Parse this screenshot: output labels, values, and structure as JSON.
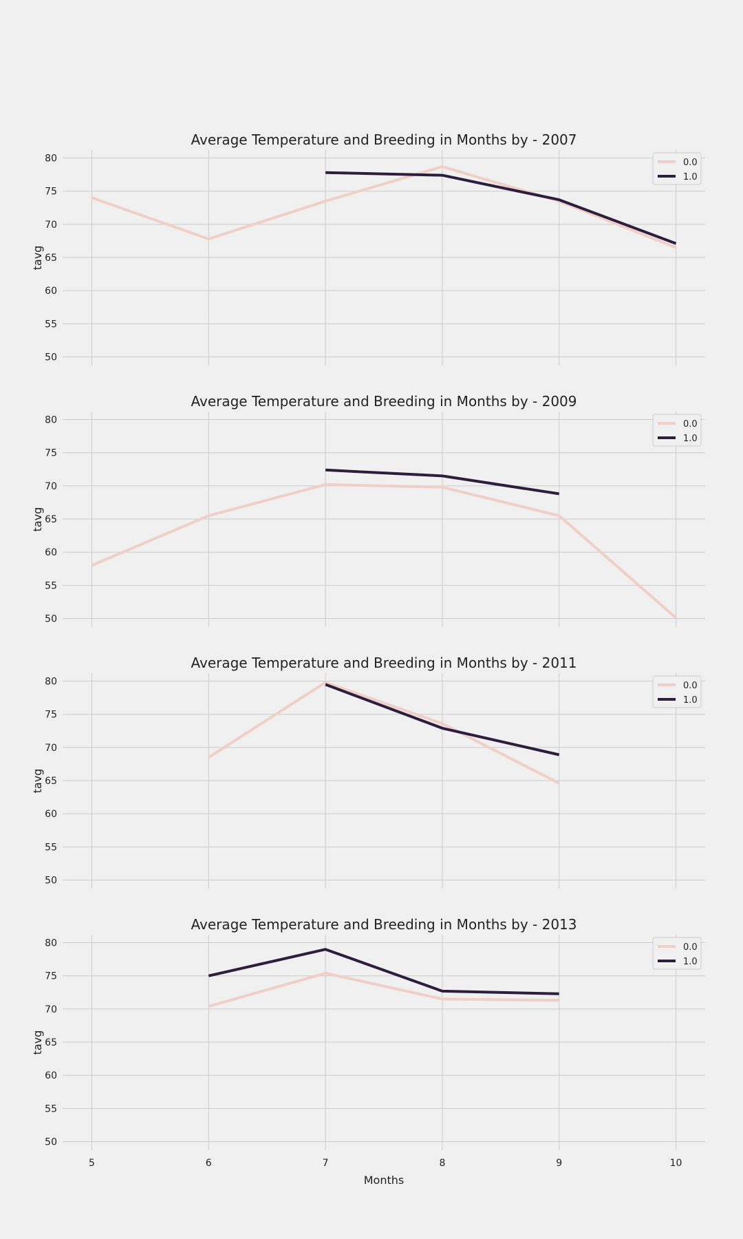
{
  "chart_data": [
    {
      "type": "line",
      "title": "Average Temperature and Breeding in Months by - 2007",
      "xlabel": "",
      "ylabel": "tavg",
      "xlim": [
        4.75,
        10.25
      ],
      "ylim": [
        48.7,
        81.2
      ],
      "x_ticks": [
        5,
        6,
        7,
        8,
        9,
        10
      ],
      "y_ticks": [
        50,
        55,
        60,
        65,
        70,
        75,
        80
      ],
      "show_x_tick_labels": false,
      "grid": true,
      "legend": "top-right",
      "series": [
        {
          "name": "0.0",
          "color": "#f0cfc6",
          "points": [
            [
              5,
              74.0
            ],
            [
              6,
              67.8
            ],
            [
              7,
              73.5
            ],
            [
              8,
              78.7
            ],
            [
              9,
              73.5
            ],
            [
              10,
              66.5
            ]
          ]
        },
        {
          "name": "1.0",
          "color": "#2d1e3e",
          "points": [
            [
              7,
              77.8
            ],
            [
              8,
              77.4
            ],
            [
              9,
              73.7
            ],
            [
              10,
              67.1
            ]
          ]
        }
      ]
    },
    {
      "type": "line",
      "title": "Average Temperature and Breeding in Months by - 2009",
      "xlabel": "",
      "ylabel": "tavg",
      "xlim": [
        4.75,
        10.25
      ],
      "ylim": [
        48.7,
        81.2
      ],
      "x_ticks": [
        5,
        6,
        7,
        8,
        9,
        10
      ],
      "y_ticks": [
        50,
        55,
        60,
        65,
        70,
        75,
        80
      ],
      "show_x_tick_labels": false,
      "grid": true,
      "legend": "top-right",
      "series": [
        {
          "name": "0.0",
          "color": "#f0cfc6",
          "points": [
            [
              5,
              58.0
            ],
            [
              6,
              65.5
            ],
            [
              7,
              70.2
            ],
            [
              8,
              69.8
            ],
            [
              9,
              65.5
            ],
            [
              10,
              50.1
            ]
          ]
        },
        {
          "name": "1.0",
          "color": "#2d1e3e",
          "points": [
            [
              7,
              72.4
            ],
            [
              8,
              71.5
            ],
            [
              9,
              68.8
            ]
          ]
        }
      ]
    },
    {
      "type": "line",
      "title": "Average Temperature and Breeding in Months by - 2011",
      "xlabel": "",
      "ylabel": "tavg",
      "xlim": [
        4.75,
        10.25
      ],
      "ylim": [
        48.7,
        81.2
      ],
      "x_ticks": [
        5,
        6,
        7,
        8,
        9,
        10
      ],
      "y_ticks": [
        50,
        55,
        60,
        65,
        70,
        75,
        80
      ],
      "show_x_tick_labels": false,
      "grid": true,
      "legend": "top-right",
      "series": [
        {
          "name": "0.0",
          "color": "#f0cfc6",
          "points": [
            [
              6,
              68.5
            ],
            [
              7,
              79.8
            ],
            [
              8,
              73.6
            ],
            [
              9,
              64.6
            ]
          ]
        },
        {
          "name": "1.0",
          "color": "#2d1e3e",
          "points": [
            [
              7,
              79.5
            ],
            [
              8,
              72.9
            ],
            [
              9,
              68.9
            ]
          ]
        }
      ]
    },
    {
      "type": "line",
      "title": "Average Temperature and Breeding in Months by - 2013",
      "xlabel": "Months",
      "ylabel": "tavg",
      "xlim": [
        4.75,
        10.25
      ],
      "ylim": [
        48.7,
        81.2
      ],
      "x_ticks": [
        5,
        6,
        7,
        8,
        9,
        10
      ],
      "y_ticks": [
        50,
        55,
        60,
        65,
        70,
        75,
        80
      ],
      "show_x_tick_labels": true,
      "grid": true,
      "legend": "top-right",
      "series": [
        {
          "name": "0.0",
          "color": "#f0cfc6",
          "points": [
            [
              6,
              70.4
            ],
            [
              7,
              75.4
            ],
            [
              8,
              71.5
            ],
            [
              9,
              71.3
            ]
          ]
        },
        {
          "name": "1.0",
          "color": "#2d1e3e",
          "points": [
            [
              6,
              75.0
            ],
            [
              7,
              79.0
            ],
            [
              8,
              72.7
            ],
            [
              9,
              72.3
            ]
          ]
        }
      ]
    }
  ],
  "colors": {
    "background": "#f0f0f0",
    "grid": "#cbcbcb",
    "text": "#222222",
    "legend_bg": "#f0f0f0",
    "legend_border": "#cccccc"
  }
}
